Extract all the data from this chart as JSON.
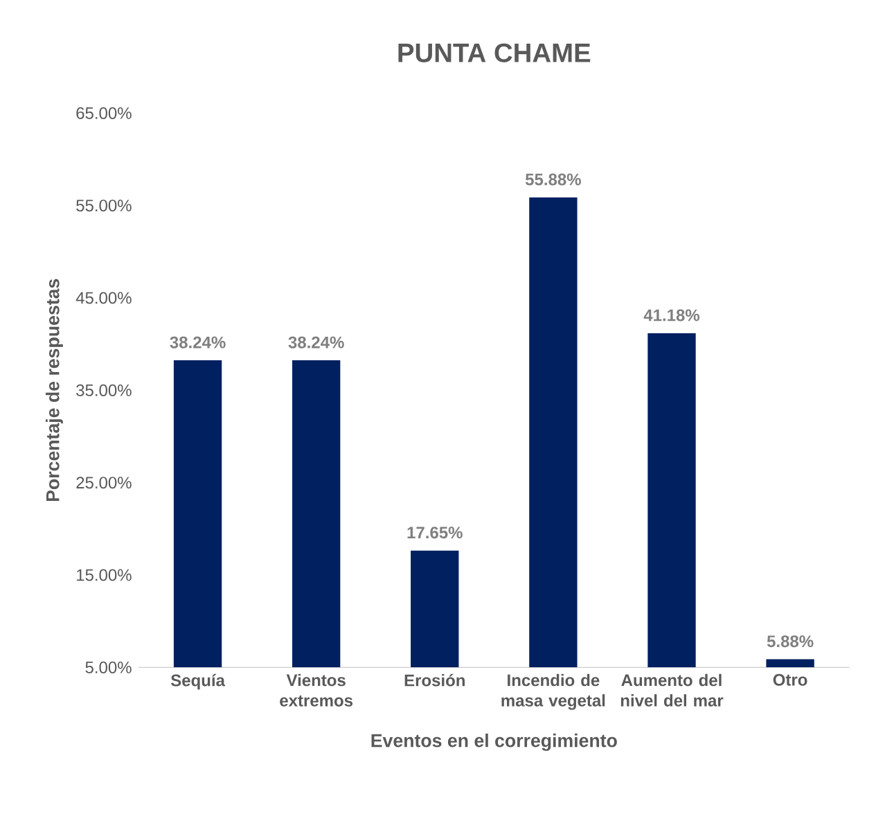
{
  "chart_data": {
    "type": "bar",
    "title": "PUNTA CHAME",
    "xlabel": "Eventos en el corregimiento",
    "ylabel": "Porcentaje de respuestas",
    "categories": [
      "Sequía",
      "Vientos extremos",
      "Erosión",
      "Incendio de masa vegetal",
      "Aumento del nivel del mar",
      "Otro"
    ],
    "values": [
      38.24,
      38.24,
      17.65,
      55.88,
      41.18,
      5.88
    ],
    "value_labels": [
      "38.24%",
      "38.24%",
      "17.65%",
      "55.88%",
      "41.18%",
      "5.88%"
    ],
    "color": "#002060",
    "ylim": [
      5,
      65
    ],
    "yticks": [
      {
        "value": 5,
        "label": "5.00%"
      },
      {
        "value": 15,
        "label": "15.00%"
      },
      {
        "value": 25,
        "label": "25.00%"
      },
      {
        "value": 35,
        "label": "35.00%"
      },
      {
        "value": 45,
        "label": "45.00%"
      },
      {
        "value": 55,
        "label": "55.00%"
      },
      {
        "value": 65,
        "label": "65.00%"
      }
    ],
    "grid": false
  }
}
